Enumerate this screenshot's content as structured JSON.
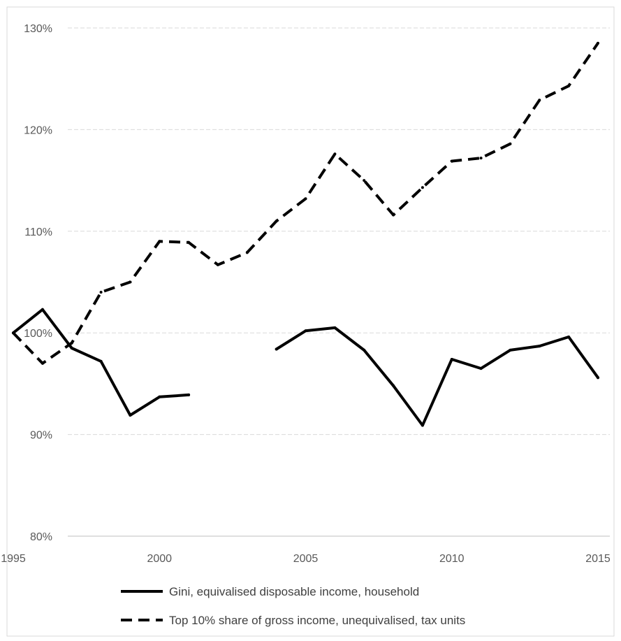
{
  "chart_data": {
    "type": "line",
    "title": "",
    "xlabel": "",
    "ylabel": "",
    "xlim": [
      1995,
      2015
    ],
    "ylim": [
      80,
      130
    ],
    "x_ticks": [
      1995,
      2000,
      2005,
      2010,
      2015
    ],
    "y_ticks": [
      80,
      90,
      100,
      110,
      120,
      130
    ],
    "y_tick_labels": [
      "80%",
      "90%",
      "100%",
      "110%",
      "120%",
      "130%"
    ],
    "grid": "horizontal",
    "legend_position": "bottom",
    "series": [
      {
        "name": "Gini, equivalised disposable income, household",
        "style": "solid",
        "color": "#000000",
        "segments": [
          {
            "x": [
              1995,
              1996,
              1997,
              1998,
              1999,
              2000,
              2001
            ],
            "y": [
              100.0,
              102.3,
              98.5,
              97.2,
              91.9,
              93.7,
              93.9
            ]
          },
          {
            "x": [
              2004,
              2005,
              2006,
              2007,
              2008,
              2009,
              2010,
              2011,
              2012,
              2013,
              2014,
              2015
            ],
            "y": [
              98.4,
              100.2,
              100.5,
              98.3,
              94.8,
              90.9,
              97.4,
              96.5,
              98.3,
              98.7,
              99.6,
              95.6
            ]
          }
        ]
      },
      {
        "name": "Top 10% share of gross income, unequivalised, tax units",
        "style": "dashed",
        "color": "#000000",
        "segments": [
          {
            "x": [
              1995,
              1996,
              1997,
              1998,
              1999,
              2000,
              2001,
              2002,
              2003,
              2004,
              2005,
              2006,
              2007,
              2008,
              2009,
              2010,
              2011,
              2012,
              2013,
              2014,
              2015
            ],
            "y": [
              100.0,
              97.0,
              99.0,
              104.0,
              105.0,
              109.0,
              108.9,
              106.7,
              107.9,
              111.0,
              113.2,
              117.6,
              115.0,
              111.6,
              114.3,
              116.9,
              117.2,
              118.6,
              122.9,
              124.3,
              128.5
            ]
          }
        ]
      }
    ]
  }
}
